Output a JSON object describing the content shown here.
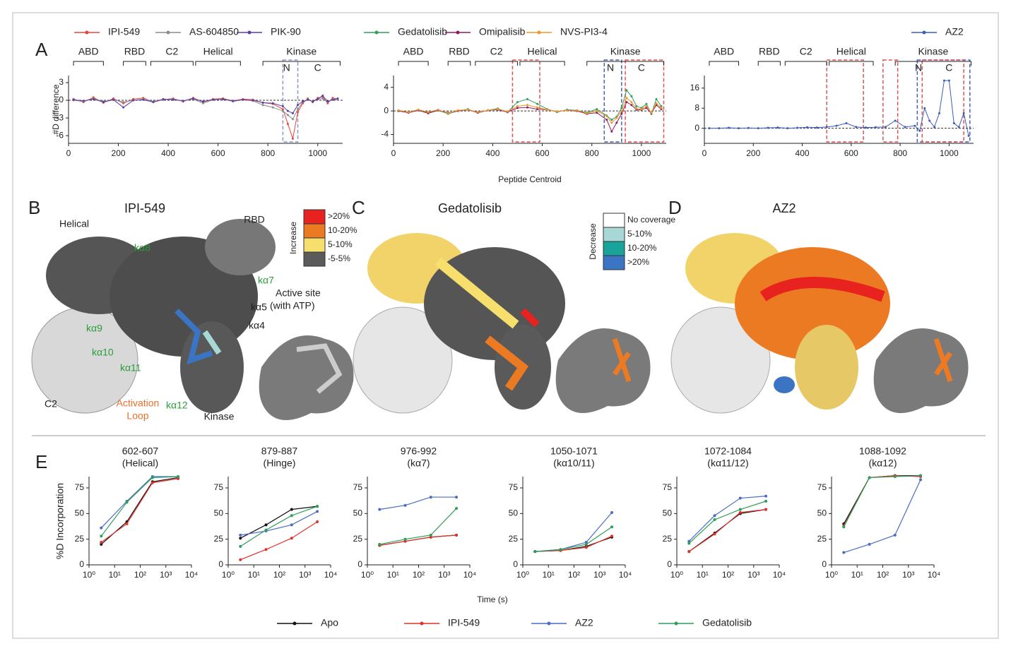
{
  "panel_labels": [
    "A",
    "B",
    "C",
    "D",
    "E"
  ],
  "protein_domains": {
    "domains": [
      {
        "label": "ABD",
        "start": 20,
        "end": 140
      },
      {
        "label": "RBD",
        "start": 220,
        "end": 310
      },
      {
        "label": "C2",
        "start": 330,
        "end": 500
      },
      {
        "label": "Helical",
        "start": 510,
        "end": 690
      },
      {
        "label": "Kinase",
        "start": 780,
        "end": 1090
      }
    ],
    "kinase_lobes": [
      {
        "label": "N",
        "start": 820,
        "end": 930
      },
      {
        "label": "C",
        "start": 940,
        "end": 1060
      }
    ]
  },
  "structures": {
    "titles": [
      "IPI-549",
      "Gedatolisib",
      "AZ2"
    ],
    "domain_labels": [
      "Helical",
      "RBD",
      "C2",
      "Kinase"
    ],
    "helix_labels": [
      "kα8",
      "kα7",
      "kα9",
      "kα10",
      "kα11",
      "kα12"
    ],
    "site_labels": [
      "Active site",
      "(with ATP)",
      "kα5",
      "kα4"
    ],
    "loop_label": [
      "Activation",
      "Loop"
    ],
    "increase_legend": {
      "title": "Increase",
      "items": [
        {
          "label": ">20%",
          "color": "#e8221e"
        },
        {
          "label": "10-20%",
          "color": "#ec7a23"
        },
        {
          "label": "5-10%",
          "color": "#f7df6e"
        },
        {
          "label": "-5-5%",
          "color": "#5a5a5a"
        }
      ]
    },
    "decrease_legend": {
      "title": "Decrease",
      "items": [
        {
          "label": "No coverage",
          "color": "#ffffff"
        },
        {
          "label": "5-10%",
          "color": "#a8d8d6"
        },
        {
          "label": "10-20%",
          "color": "#1aa39a"
        },
        {
          "label": ">20%",
          "color": "#3b74c2"
        }
      ]
    }
  },
  "chart_data": [
    {
      "type": "line",
      "ylabel": "#D difference",
      "legend": "top",
      "x": [
        20,
        60,
        100,
        140,
        180,
        220,
        260,
        300,
        340,
        380,
        420,
        460,
        500,
        540,
        580,
        620,
        660,
        700,
        740,
        780,
        820,
        860,
        880,
        900,
        920,
        940,
        960,
        980,
        1000,
        1020,
        1040,
        1060,
        1080
      ],
      "xlim": [
        0,
        1100
      ],
      "xticks": [
        0,
        200,
        400,
        600,
        800,
        1000
      ],
      "ylim": [
        -7.3,
        4.2
      ],
      "yticks": [
        -6,
        -3,
        0,
        3
      ],
      "highlights": [
        {
          "start": 860,
          "end": 920,
          "color": "#8a96c8"
        }
      ],
      "series": [
        {
          "name": "IPI-549",
          "color": "#e8423a",
          "values": [
            0.2,
            -0.3,
            0.5,
            -0.4,
            0.3,
            -0.5,
            0.2,
            0.4,
            -0.3,
            0.1,
            0.3,
            -0.2,
            0.4,
            -0.3,
            0.2,
            0.3,
            -0.1,
            0.2,
            0.1,
            -0.4,
            -0.6,
            -1.5,
            -4,
            -6.5,
            -2,
            -0.5,
            0.3,
            -0.3,
            0.4,
            0.6,
            -0.5,
            0.4,
            0.2
          ]
        },
        {
          "name": "AS-604850",
          "color": "#8c8c8c",
          "values": [
            0,
            -0.2,
            0.3,
            -0.2,
            0.1,
            -0.3,
            0,
            0.2,
            -0.2,
            0.1,
            0.2,
            -0.1,
            0.2,
            -0.5,
            0.1,
            0.2,
            -0.2,
            0.1,
            -0.1,
            -0.8,
            -1.2,
            -1.8,
            -2.5,
            -3.2,
            -1.5,
            -0.3,
            0.2,
            -0.2,
            0.2,
            0.3,
            -0.3,
            0.2,
            0.1
          ]
        },
        {
          "name": "PIK-90",
          "color": "#5b3fa6",
          "values": [
            0.1,
            -0.1,
            0.2,
            -0.3,
            0.1,
            -1.2,
            0,
            0.1,
            -0.3,
            0.2,
            0.1,
            -0.1,
            0.3,
            -0.2,
            0.1,
            0.2,
            -0.1,
            0.1,
            0,
            -0.4,
            -0.5,
            -1,
            -1.8,
            -2.2,
            -0.8,
            -0.2,
            0.1,
            -0.2,
            0.2,
            0.8,
            -0.2,
            0.1,
            0.3
          ]
        }
      ]
    },
    {
      "type": "line",
      "xlabel": "Peptide Centroid",
      "legend": "top",
      "x": [
        20,
        60,
        100,
        140,
        180,
        220,
        260,
        300,
        340,
        380,
        420,
        460,
        500,
        540,
        580,
        620,
        660,
        700,
        740,
        780,
        820,
        860,
        880,
        900,
        920,
        940,
        960,
        980,
        1000,
        1020,
        1040,
        1060,
        1080
      ],
      "xlim": [
        0,
        1100
      ],
      "xticks": [
        0,
        200,
        400,
        600,
        800,
        1000
      ],
      "ylim": [
        -5.5,
        6
      ],
      "yticks": [
        -4,
        0,
        4
      ],
      "highlights": [
        {
          "start": 480,
          "end": 590,
          "color": "#e05050"
        },
        {
          "start": 850,
          "end": 920,
          "color": "#4a5cb0"
        },
        {
          "start": 935,
          "end": 1090,
          "color": "#e05050"
        }
      ],
      "series": [
        {
          "name": "Gedatolisib",
          "color": "#2e9e5b",
          "values": [
            0,
            -0.2,
            0.2,
            -0.3,
            0.1,
            -0.5,
            0,
            0.3,
            -0.3,
            0.1,
            0.4,
            -0.2,
            1.5,
            2,
            1.2,
            0.3,
            -0.2,
            0.2,
            0.1,
            -0.3,
            0.3,
            -0.8,
            -1.5,
            -1,
            0.5,
            3.5,
            2.5,
            0.8,
            0.5,
            1.2,
            -0.5,
            2,
            0.8
          ]
        },
        {
          "name": "Omipalisib",
          "color": "#8e1d5c",
          "values": [
            0,
            -0.3,
            0.1,
            -0.4,
            0.1,
            -0.3,
            0,
            0.2,
            -0.3,
            0.1,
            0.2,
            -0.2,
            0.5,
            0.6,
            0.3,
            0.2,
            -0.1,
            0.1,
            0,
            -0.5,
            -0.3,
            -1.5,
            -3.5,
            -2,
            -0.5,
            1.5,
            1,
            0.2,
            0.2,
            0.5,
            -0.4,
            1,
            0.3
          ]
        },
        {
          "name": "NVS-PI3-4",
          "color": "#f0962a",
          "values": [
            0.1,
            -0.2,
            0.2,
            -0.2,
            0.2,
            -0.4,
            0.1,
            0.2,
            -0.2,
            0.1,
            0.3,
            -0.1,
            0.8,
            1,
            0.6,
            0.2,
            -0.1,
            0.1,
            0.1,
            -0.4,
            0,
            -0.9,
            -2,
            -1.2,
            0,
            2.2,
            1.5,
            0.4,
            0.3,
            0.8,
            -0.3,
            1.3,
            0.5
          ]
        }
      ]
    },
    {
      "type": "line",
      "legend": "top",
      "x": [
        20,
        60,
        100,
        140,
        180,
        220,
        260,
        300,
        340,
        380,
        420,
        460,
        500,
        540,
        580,
        620,
        660,
        700,
        740,
        780,
        820,
        860,
        880,
        900,
        920,
        940,
        960,
        980,
        1000,
        1020,
        1040,
        1060,
        1080
      ],
      "xlim": [
        0,
        1100
      ],
      "xticks": [
        0,
        200,
        400,
        600,
        800,
        1000
      ],
      "ylim": [
        -6,
        21
      ],
      "yticks": [
        0,
        8,
        16
      ],
      "highlights": [
        {
          "start": 500,
          "end": 650,
          "color": "#e05050"
        },
        {
          "start": 730,
          "end": 790,
          "color": "#e05050"
        },
        {
          "start": 870,
          "end": 1085,
          "color": "#4a5cb0"
        },
        {
          "start": 890,
          "end": 1060,
          "color": "#e05050"
        }
      ],
      "series": [
        {
          "name": "AZ2",
          "color": "#3b5fb5",
          "values": [
            0,
            0,
            0.2,
            0,
            0.1,
            0,
            0.2,
            0.3,
            0,
            0.2,
            0.4,
            0.3,
            0.5,
            1,
            2,
            0.5,
            0.3,
            0.4,
            0.5,
            3,
            0.5,
            1,
            -1,
            8,
            3,
            0.5,
            6,
            19,
            19,
            2,
            0.5,
            6,
            -3
          ]
        }
      ]
    },
    {
      "type": "line",
      "title": "602-607",
      "subtitle": "(Helical)",
      "ylabel": "%D Incorporation",
      "xlog": true,
      "x": [
        3,
        30,
        300,
        3000
      ],
      "xlim": [
        1,
        10000
      ],
      "xticks": [
        {
          "value": 1,
          "label": "10⁰"
        },
        {
          "value": 10,
          "label": "10¹"
        },
        {
          "value": 100,
          "label": "10²"
        },
        {
          "value": 1000,
          "label": "10³"
        },
        {
          "value": 10000,
          "label": "10⁴"
        }
      ],
      "ylim": [
        0,
        86
      ],
      "yticks": [
        0,
        25,
        50,
        75
      ],
      "series": [
        {
          "name": "Apo",
          "color": "#111111",
          "values": [
            20,
            42,
            81,
            85
          ]
        },
        {
          "name": "IPI-549",
          "color": "#e0322a",
          "values": [
            22,
            40,
            80,
            84
          ]
        },
        {
          "name": "AZ2",
          "color": "#4a6cc4",
          "values": [
            36,
            62,
            86,
            86
          ]
        },
        {
          "name": "Gedatolisib",
          "color": "#2e9e5b",
          "values": [
            28,
            61,
            85,
            86
          ]
        }
      ]
    },
    {
      "type": "line",
      "title": "879-887",
      "subtitle": "(Hinge)",
      "xlog": true,
      "x": [
        3,
        30,
        300,
        3000
      ],
      "xlim": [
        1,
        10000
      ],
      "xticks": [
        {
          "value": 1,
          "label": "10⁰"
        },
        {
          "value": 10,
          "label": "10¹"
        },
        {
          "value": 100,
          "label": "10²"
        },
        {
          "value": 1000,
          "label": "10³"
        },
        {
          "value": 10000,
          "label": "10⁴"
        }
      ],
      "ylim": [
        0,
        86
      ],
      "yticks": [
        0,
        25,
        50,
        75
      ],
      "series": [
        {
          "name": "Apo",
          "color": "#111111",
          "values": [
            26,
            39,
            54,
            57
          ]
        },
        {
          "name": "IPI-549",
          "color": "#e0322a",
          "values": [
            5,
            15,
            26,
            42
          ]
        },
        {
          "name": "AZ2",
          "color": "#4a6cc4",
          "values": [
            29,
            33,
            39,
            52
          ]
        },
        {
          "name": "Gedatolisib",
          "color": "#2e9e5b",
          "values": [
            18,
            34,
            48,
            57
          ]
        }
      ]
    },
    {
      "type": "line",
      "title": "976-992",
      "subtitle": "(kα7)",
      "xlog": true,
      "x": [
        3,
        30,
        300,
        3000
      ],
      "xlim": [
        1,
        10000
      ],
      "xticks": [
        {
          "value": 1,
          "label": "10⁰"
        },
        {
          "value": 10,
          "label": "10¹"
        },
        {
          "value": 100,
          "label": "10²"
        },
        {
          "value": 1000,
          "label": "10³"
        },
        {
          "value": 10000,
          "label": "10⁴"
        }
      ],
      "ylim": [
        0,
        86
      ],
      "yticks": [
        0,
        25,
        50,
        75
      ],
      "series": [
        {
          "name": "Apo",
          "color": "#111111",
          "values": [
            19,
            23,
            27,
            29
          ]
        },
        {
          "name": "IPI-549",
          "color": "#e0322a",
          "values": [
            19,
            23,
            27,
            29
          ]
        },
        {
          "name": "AZ2",
          "color": "#4a6cc4",
          "values": [
            54,
            58,
            66,
            66
          ]
        },
        {
          "name": "Gedatolisib",
          "color": "#2e9e5b",
          "values": [
            20,
            25,
            29,
            55
          ]
        }
      ]
    },
    {
      "type": "line",
      "title": "1050-1071",
      "subtitle": "(kα10/11)",
      "xlabel": "Time (s)",
      "legend": "bottom",
      "xlog": true,
      "x": [
        3,
        30,
        300,
        3000
      ],
      "xlim": [
        1,
        10000
      ],
      "xticks": [
        {
          "value": 1,
          "label": "10⁰"
        },
        {
          "value": 10,
          "label": "10¹"
        },
        {
          "value": 100,
          "label": "10²"
        },
        {
          "value": 1000,
          "label": "10³"
        },
        {
          "value": 10000,
          "label": "10⁴"
        }
      ],
      "ylim": [
        0,
        86
      ],
      "yticks": [
        0,
        25,
        50,
        75
      ],
      "series": [
        {
          "name": "Apo",
          "color": "#111111",
          "values": [
            13,
            14,
            18,
            27
          ]
        },
        {
          "name": "IPI-549",
          "color": "#e0322a",
          "values": [
            13,
            14,
            17,
            28
          ]
        },
        {
          "name": "AZ2",
          "color": "#4a6cc4",
          "values": [
            13,
            15,
            22,
            51
          ]
        },
        {
          "name": "Gedatolisib",
          "color": "#2e9e5b",
          "values": [
            13,
            15,
            20,
            37
          ]
        }
      ]
    },
    {
      "type": "line",
      "title": "1072-1084",
      "subtitle": "(kα11/12)",
      "xlog": true,
      "x": [
        3,
        30,
        300,
        3000
      ],
      "xlim": [
        1,
        10000
      ],
      "xticks": [
        {
          "value": 1,
          "label": "10⁰"
        },
        {
          "value": 10,
          "label": "10¹"
        },
        {
          "value": 100,
          "label": "10²"
        },
        {
          "value": 1000,
          "label": "10³"
        },
        {
          "value": 10000,
          "label": "10⁴"
        }
      ],
      "ylim": [
        0,
        86
      ],
      "yticks": [
        0,
        25,
        50,
        75
      ],
      "series": [
        {
          "name": "Apo",
          "color": "#111111",
          "values": [
            13,
            31,
            50,
            54
          ]
        },
        {
          "name": "IPI-549",
          "color": "#e0322a",
          "values": [
            13,
            30,
            51,
            54
          ]
        },
        {
          "name": "AZ2",
          "color": "#4a6cc4",
          "values": [
            23,
            48,
            65,
            67
          ]
        },
        {
          "name": "Gedatolisib",
          "color": "#2e9e5b",
          "values": [
            21,
            44,
            54,
            62
          ]
        }
      ]
    },
    {
      "type": "line",
      "title": "1088-1092",
      "subtitle": "(kα12)",
      "xlog": true,
      "x": [
        3,
        30,
        300,
        3000
      ],
      "xlim": [
        1,
        10000
      ],
      "xticks": [
        {
          "value": 1,
          "label": "10⁰"
        },
        {
          "value": 10,
          "label": "10¹"
        },
        {
          "value": 100,
          "label": "10²"
        },
        {
          "value": 1000,
          "label": "10³"
        },
        {
          "value": 10000,
          "label": "10⁴"
        }
      ],
      "ylim": [
        0,
        86
      ],
      "yticks": [
        0,
        25,
        50,
        75
      ],
      "series": [
        {
          "name": "Apo",
          "color": "#111111",
          "values": [
            40,
            85,
            87,
            87
          ]
        },
        {
          "name": "IPI-549",
          "color": "#e0322a",
          "values": [
            38,
            85,
            87,
            86
          ]
        },
        {
          "name": "AZ2",
          "color": "#4a6cc4",
          "values": [
            12,
            20,
            29,
            83
          ]
        },
        {
          "name": "Gedatolisib",
          "color": "#2e9e5b",
          "values": [
            37,
            85,
            86,
            87
          ]
        }
      ]
    }
  ]
}
